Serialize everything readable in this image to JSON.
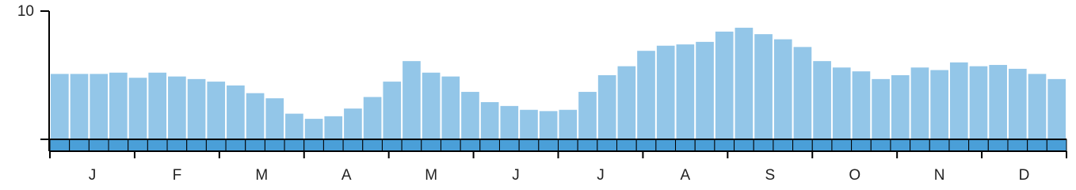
{
  "chart_data": {
    "type": "bar",
    "values": [
      5.1,
      5.1,
      5.1,
      5.2,
      4.8,
      5.2,
      4.9,
      4.7,
      4.5,
      4.2,
      3.6,
      3.2,
      2.0,
      1.6,
      1.8,
      2.4,
      3.3,
      4.5,
      6.1,
      5.2,
      4.9,
      3.7,
      2.9,
      2.6,
      2.3,
      2.2,
      2.3,
      3.7,
      5.0,
      5.7,
      6.9,
      7.3,
      7.4,
      7.6,
      8.4,
      8.7,
      8.2,
      7.8,
      7.2,
      6.1,
      5.6,
      5.3,
      4.7,
      5.0,
      5.6,
      5.4,
      6.0,
      5.7,
      5.8,
      5.5,
      5.1,
      4.7
    ],
    "months": [
      "J",
      "F",
      "M",
      "A",
      "M",
      "J",
      "J",
      "A",
      "S",
      "O",
      "N",
      "D"
    ],
    "color": "#93c6e8",
    "ylim": [
      0,
      10
    ],
    "yticks": [
      10
    ],
    "grid": false
  }
}
